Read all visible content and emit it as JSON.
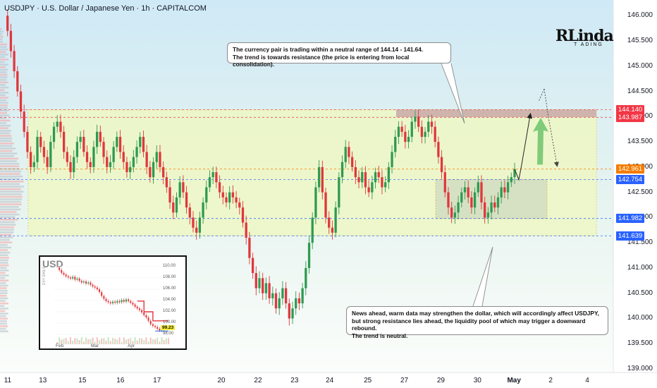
{
  "chart_title": "USDJPY · U.S. Dollar / Japanese Yen · 1h · CAPITALCOM",
  "logo": {
    "main": "RLinda",
    "sub": "T ADING"
  },
  "callouts": {
    "top": "The currency pair is trading within a neutral range of 144.14 - 141.64.\nThe trend is towards resistance (the price is entering from local consolidation).",
    "bottom": "News ahead, warm data may strengthen the dollar, which will accordingly affect USDJPY, but strong resistance lies ahead, the liquidity pool of which may trigger a downward rebound.\nThe trend is neutral."
  },
  "colors": {
    "background_top": "#cfe9f6",
    "background_bottom": "#fbfdfb",
    "range_fill": "#eef7c4",
    "consolidation_fill": "#cdd9c0",
    "resistance_zone": "#c9a8a8",
    "bull": "#2e9a52",
    "bear": "#e0373c",
    "arrow": "#6cc36c",
    "label_red": "#f23645",
    "label_orange": "#f57c00",
    "label_blue": "#2962ff"
  },
  "chart_data": {
    "type": "candlestick",
    "symbol": "USDJPY",
    "timeframe": "1h",
    "ylim": [
      139.0,
      146.2
    ],
    "y_ticks": [
      "146.000",
      "145.500",
      "145.000",
      "144.500",
      "144.000",
      "143.500",
      "143.000",
      "142.500",
      "142.000",
      "141.500",
      "141.000",
      "140.500",
      "140.000",
      "139.500",
      "139.000"
    ],
    "y_tick_values": [
      146.0,
      145.5,
      145.0,
      144.5,
      144.0,
      143.5,
      143.0,
      142.5,
      142.0,
      141.5,
      141.0,
      140.5,
      140.0,
      139.5,
      139.0
    ],
    "x_ticks": [
      {
        "label": "11",
        "pos": 0.0
      },
      {
        "label": "13",
        "pos": 1.2
      },
      {
        "label": "15",
        "pos": 2.55
      },
      {
        "label": "16",
        "pos": 3.85
      },
      {
        "label": "17",
        "pos": 5.1
      },
      {
        "label": "20",
        "pos": 7.3
      },
      {
        "label": "22",
        "pos": 8.55
      },
      {
        "label": "23",
        "pos": 9.8
      },
      {
        "label": "24",
        "pos": 11.0
      },
      {
        "label": "25",
        "pos": 12.3
      },
      {
        "label": "27",
        "pos": 13.55
      },
      {
        "label": "29",
        "pos": 14.8
      },
      {
        "label": "30",
        "pos": 16.05
      },
      {
        "label": "May",
        "pos": 17.3,
        "bold": true
      },
      {
        "label": "2",
        "pos": 18.55
      },
      {
        "label": "4",
        "pos": 19.8
      }
    ],
    "price_levels": [
      {
        "value": 144.14,
        "label": "144.140",
        "color": "#f23645"
      },
      {
        "value": 143.987,
        "label": "143.987",
        "color": "#f23645"
      },
      {
        "value": 142.961,
        "label": "142.961",
        "color": "#f57c00"
      },
      {
        "value": 142.754,
        "label": "142.754",
        "color": "#2962ff"
      },
      {
        "value": 141.982,
        "label": "141.982",
        "color": "#2962ff"
      },
      {
        "value": 141.639,
        "label": "141.639",
        "color": "#2962ff"
      }
    ],
    "range": {
      "high": 144.14,
      "low": 141.64
    },
    "resistance_zone": {
      "high": 144.14,
      "low": 143.99
    },
    "consolidation": {
      "high": 142.754,
      "low": 141.982
    },
    "current_price": 142.961,
    "price_path": [
      146.0,
      145.7,
      145.3,
      144.9,
      144.5,
      144.1,
      143.7,
      143.3,
      143.0,
      143.1,
      143.6,
      143.4,
      143.2,
      143.0,
      143.5,
      143.8,
      143.9,
      143.7,
      143.3,
      143.1,
      142.9,
      143.2,
      143.5,
      143.6,
      143.3,
      143.1,
      143.0,
      143.4,
      143.7,
      143.5,
      143.2,
      143.0,
      143.1,
      143.4,
      143.6,
      143.3,
      143.1,
      142.9,
      143.0,
      143.2,
      143.4,
      143.6,
      143.3,
      143.0,
      142.8,
      143.1,
      143.3,
      143.0,
      142.8,
      142.6,
      142.3,
      142.1,
      142.4,
      142.7,
      142.5,
      142.2,
      142.0,
      141.8,
      141.7,
      142.0,
      142.3,
      142.6,
      142.8,
      142.9,
      142.7,
      142.5,
      142.4,
      142.3,
      142.5,
      142.4,
      142.3,
      142.2,
      141.9,
      141.6,
      141.2,
      140.9,
      140.6,
      140.8,
      140.5,
      140.7,
      140.4,
      140.5,
      140.2,
      140.4,
      140.6,
      140.3,
      140.0,
      140.2,
      140.4,
      140.3,
      140.6,
      141.0,
      141.5,
      142.0,
      142.6,
      143.0,
      142.5,
      142.0,
      141.8,
      141.7,
      142.2,
      142.8,
      143.1,
      143.4,
      143.2,
      143.0,
      142.8,
      142.7,
      142.9,
      142.6,
      142.5,
      142.7,
      142.9,
      142.8,
      142.6,
      142.7,
      143.0,
      143.3,
      143.6,
      143.8,
      143.7,
      143.5,
      143.6,
      143.9,
      144.0,
      143.8,
      143.6,
      143.7,
      143.9,
      143.8,
      143.5,
      143.2,
      142.9,
      142.5,
      142.2,
      142.0,
      142.1,
      142.3,
      142.5,
      142.6,
      142.4,
      142.2,
      142.5,
      142.7,
      142.3,
      142.0,
      142.1,
      142.3,
      142.2,
      142.4,
      142.6,
      142.5,
      142.7,
      142.8,
      142.96
    ],
    "projection": {
      "target": 143.98,
      "end": 143.05
    }
  },
  "inset": {
    "title": "USD",
    "side_label": "DXY DAILY",
    "y_ticks": [
      "110.00",
      "108.00",
      "106.00",
      "104.00",
      "102.00",
      "100.00",
      "98.00"
    ],
    "x_ticks": [
      "Feb",
      "Mar",
      "Apr"
    ],
    "badge": "99.23",
    "path": [
      109.8,
      109.4,
      108.9,
      108.6,
      108.3,
      108.1,
      107.9,
      108.2,
      107.7,
      107.9,
      107.5,
      107.2,
      107.4,
      107.0,
      107.2,
      106.8,
      106.5,
      106.3,
      106.0,
      105.5,
      104.8,
      104.3,
      103.9,
      103.7,
      103.5,
      103.8,
      103.6,
      103.9,
      103.7,
      104.1,
      103.8,
      104.2,
      103.9,
      103.6,
      103.3,
      102.9,
      102.6,
      102.3,
      101.9,
      101.4,
      101.0,
      100.4,
      99.8,
      99.5,
      99.3,
      99.0,
      98.7,
      98.9,
      99.4,
      99.2,
      99.23
    ]
  }
}
